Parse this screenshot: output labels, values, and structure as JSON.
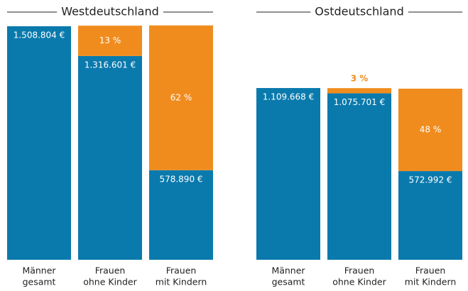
{
  "chart_data": [
    {
      "type": "stacked-bar",
      "title": "Westdeutschland",
      "categories": [
        [
          "Männer",
          "gesamt"
        ],
        [
          "Frauen",
          "ohne Kinder"
        ],
        [
          "Frauen",
          "mit Kindern"
        ]
      ],
      "series": [
        {
          "color": "#0a7aad",
          "values": [
            1508804,
            1316601,
            578890
          ],
          "value_labels": [
            "1.508.804 €",
            "1.316.601 €",
            "578.890 €"
          ]
        },
        {
          "color": "#f08c1e",
          "values": [
            null,
            13,
            62
          ],
          "value_labels": [
            null,
            "13 %",
            "62 %"
          ]
        }
      ]
    },
    {
      "type": "stacked-bar",
      "title": "Ostdeutschland",
      "categories": [
        [
          "Männer",
          "gesamt"
        ],
        [
          "Frauen",
          "ohne Kinder"
        ],
        [
          "Frauen",
          "mit Kindern"
        ]
      ],
      "series": [
        {
          "color": "#0a7aad",
          "values": [
            1109668,
            1075701,
            572992
          ],
          "value_labels": [
            "1.109.668 €",
            "1.075.701 €",
            "572.992 €"
          ]
        },
        {
          "color": "#f08c1e",
          "values": [
            null,
            3,
            48
          ],
          "value_labels": [
            null,
            "3 %",
            "48 %"
          ]
        }
      ]
    }
  ]
}
